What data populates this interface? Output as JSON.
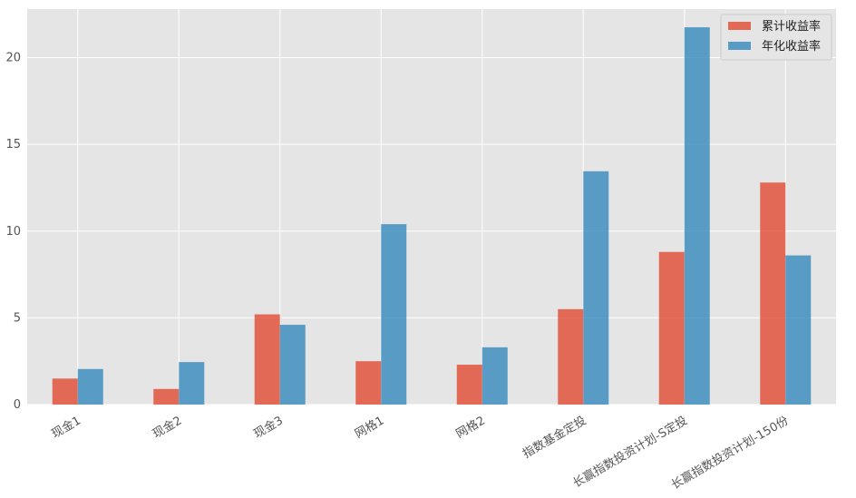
{
  "chart_data": {
    "type": "bar",
    "categories": [
      "现金1",
      "现金2",
      "现金3",
      "网格1",
      "网格2",
      "指数基金定投",
      "长赢指数投资计划-S定投",
      "长赢指数投资计划-150份"
    ],
    "series": [
      {
        "name": "累计收益率",
        "color": "#e24a33",
        "values": [
          1.5,
          0.9,
          5.2,
          2.5,
          2.3,
          5.5,
          8.8,
          12.8
        ]
      },
      {
        "name": "年化收益率",
        "color": "#348abd",
        "values": [
          2.05,
          2.45,
          4.6,
          10.4,
          3.3,
          13.45,
          21.75,
          8.6
        ]
      }
    ],
    "ylim": [
      0,
      22.8
    ],
    "yticks": [
      0,
      5,
      10,
      15,
      20
    ],
    "grid": true,
    "legend_position": "top-right",
    "xtick_rotation": -30
  }
}
